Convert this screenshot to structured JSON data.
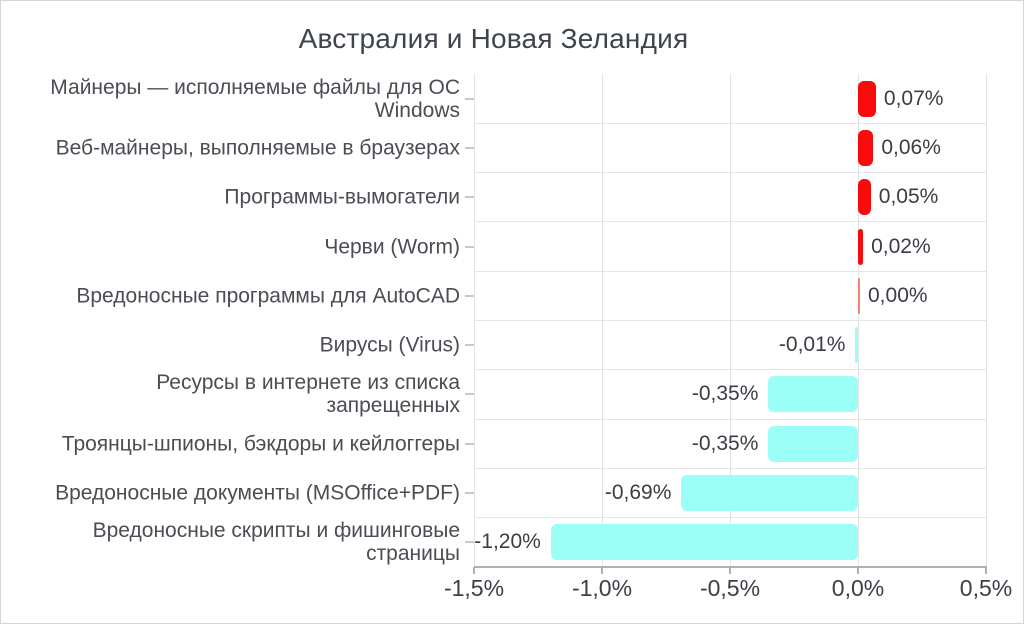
{
  "title": "Австралия и Новая Зеландия",
  "chart_data": {
    "type": "bar",
    "orientation": "horizontal",
    "title": "Австралия и Новая Зеландия",
    "value_unit": "%",
    "xlim": [
      -1.5,
      0.5
    ],
    "grid": true,
    "x_ticks": [
      {
        "value": -1.5,
        "label": "-1,5%"
      },
      {
        "value": -1.0,
        "label": "-1,0%"
      },
      {
        "value": -0.5,
        "label": "-0,5%"
      },
      {
        "value": 0.0,
        "label": "0,0%"
      },
      {
        "value": 0.5,
        "label": "0,5%"
      }
    ],
    "points": [
      {
        "category": "Майнеры — исполняемые файлы для ОС\nWindows",
        "value": 0.07,
        "label": "0,07%"
      },
      {
        "category": "Веб-майнеры, выполняемые в браузерах",
        "value": 0.06,
        "label": "0,06%"
      },
      {
        "category": "Программы-вымогатели",
        "value": 0.05,
        "label": "0,05%"
      },
      {
        "category": "Черви (Worm)",
        "value": 0.02,
        "label": "0,02%"
      },
      {
        "category": "Вредоносные программы для AutoCAD",
        "value": 0.0,
        "label": "0,00%"
      },
      {
        "category": "Вирусы (Virus)",
        "value": -0.01,
        "label": "-0,01%"
      },
      {
        "category": "Ресурсы в интернете из списка\nзапрещенных",
        "value": -0.35,
        "label": "-0,35%"
      },
      {
        "category": "Троянцы-шпионы, бэкдоры и кейлоггеры",
        "value": -0.35,
        "label": "-0,35%"
      },
      {
        "category": "Вредоносные документы (MSOffice+PDF)",
        "value": -0.69,
        "label": "-0,69%"
      },
      {
        "category": "Вредоносные скрипты и фишинговые\nстраницы",
        "value": -1.2,
        "label": "-1,20%"
      }
    ],
    "colors": {
      "positive": "#fa0a0a",
      "zero": "#f4827b",
      "negative": "#9bfff8"
    }
  }
}
